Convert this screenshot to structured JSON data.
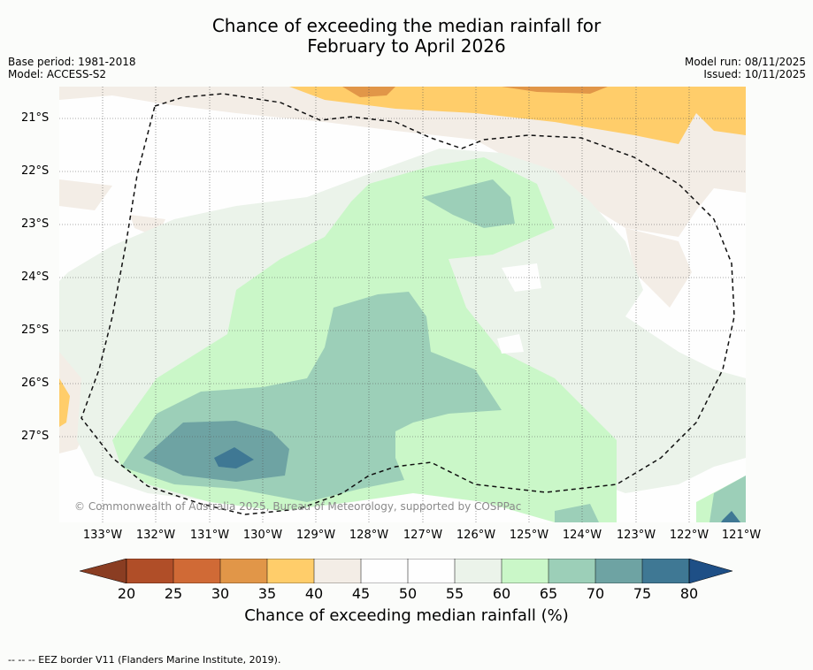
{
  "title_line1": "Chance of exceeding the median rainfall for",
  "title_line2": "February to April 2026",
  "meta_left": {
    "base_period": "Base period: 1981-2018",
    "model": "Model: ACCESS-S2"
  },
  "meta_right": {
    "model_run": "Model run: 08/11/2025",
    "issued": "Issued: 10/11/2025"
  },
  "copyright": "© Commonwealth of Australia 2025, Bureau of Meteorology, supported by COSPPac",
  "latitudes": [
    "21°S",
    "22°S",
    "23°S",
    "24°S",
    "25°S",
    "26°S",
    "27°S"
  ],
  "longitudes": [
    "133°W",
    "132°W",
    "131°W",
    "130°W",
    "129°W",
    "128°W",
    "127°W",
    "126°W",
    "125°W",
    "124°W",
    "123°W",
    "122°W",
    "121°W"
  ],
  "colorbar": {
    "ticks": [
      "20",
      "25",
      "30",
      "35",
      "40",
      "45",
      "50",
      "55",
      "60",
      "65",
      "70",
      "75",
      "80"
    ],
    "colors": [
      "#8a3d22",
      "#b04e28",
      "#d06a36",
      "#e19648",
      "#ffcd6a",
      "#f3ede6",
      "#fefefe",
      "#fefefe",
      "#ebf3ea",
      "#caf7c8",
      "#9ccfb8",
      "#6ea3a3",
      "#3f7894",
      "#1e4f86"
    ],
    "label": "Chance of exceeding median rainfall (%)"
  },
  "footer": "--  --  -- EEZ border V11 (Flanders Marine Institute, 2019)."
}
